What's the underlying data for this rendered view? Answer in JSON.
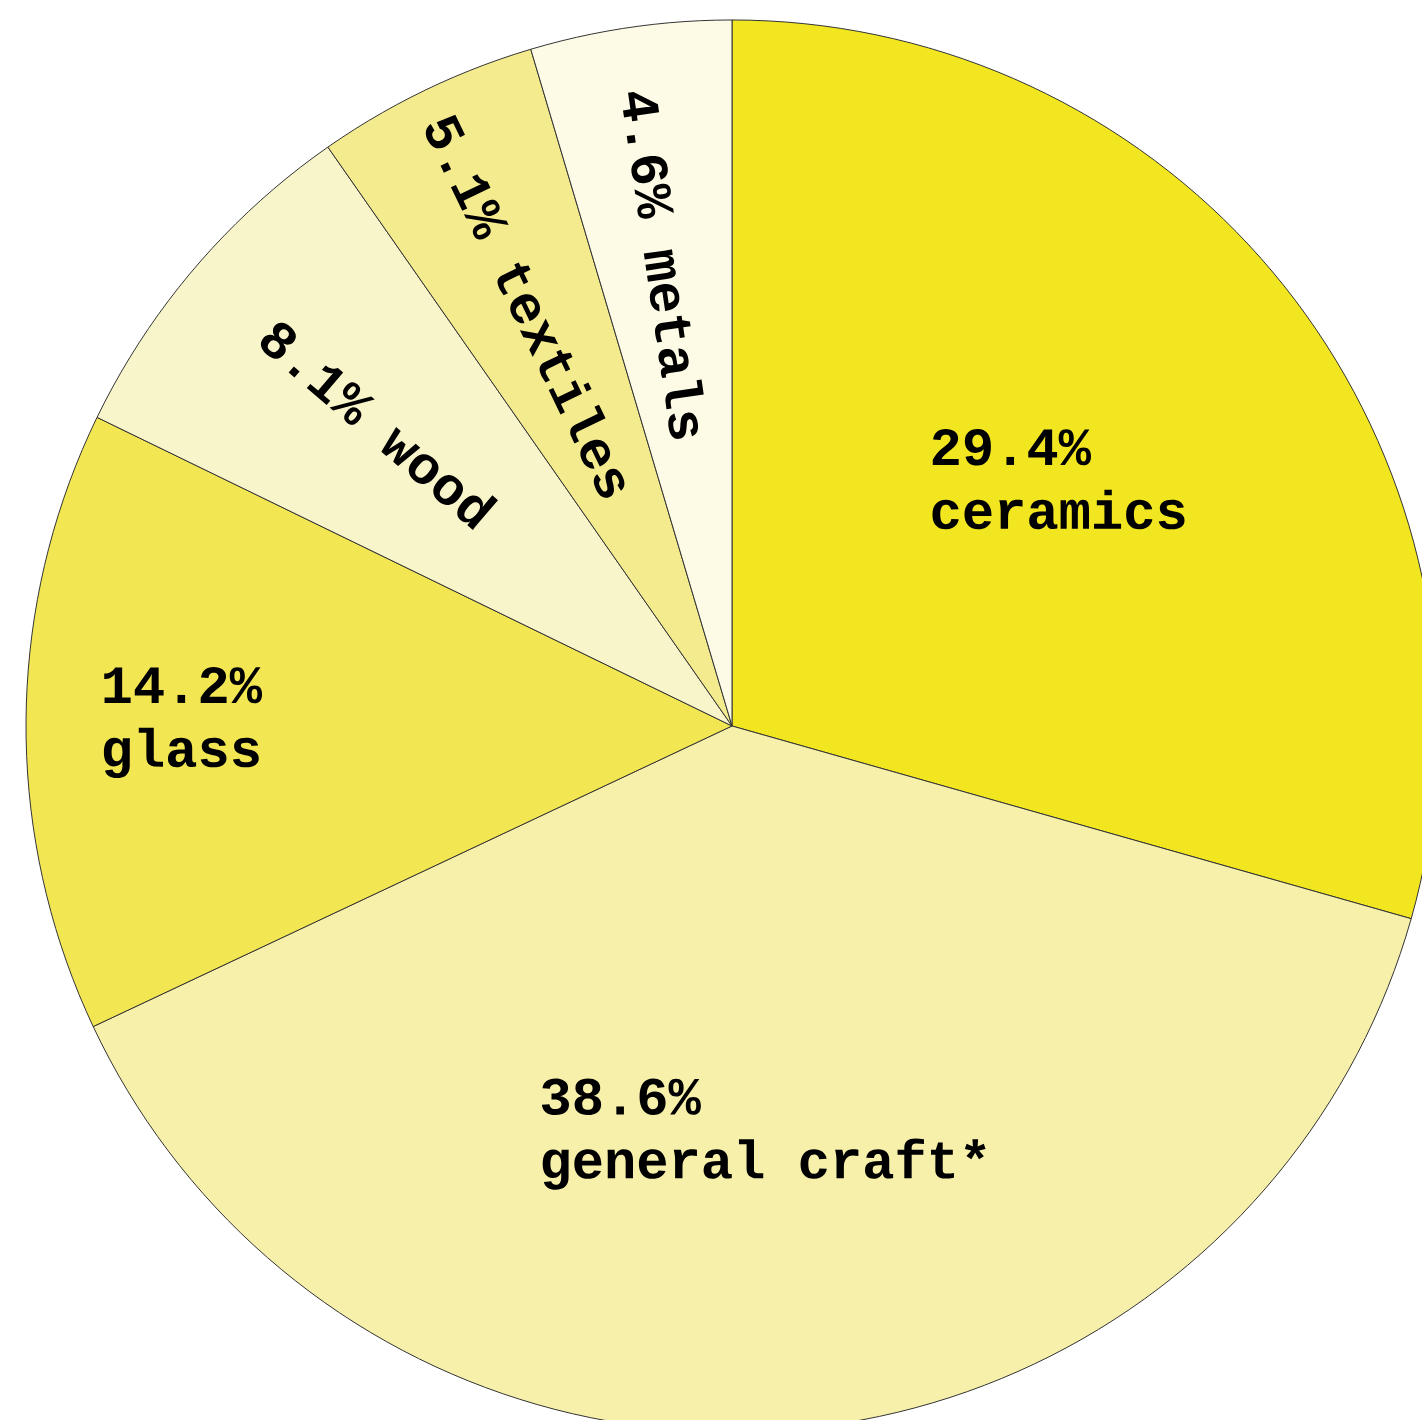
{
  "chart_data": {
    "type": "pie",
    "categories": [
      "ceramics",
      "general craft*",
      "glass",
      "wood",
      "textiles",
      "metals"
    ],
    "values": [
      29.4,
      38.6,
      14.2,
      8.1,
      5.1,
      4.6
    ],
    "value_labels": [
      "29.4%",
      "38.6%",
      "14.2%",
      "8.1%",
      "5.1%",
      "4.6%"
    ],
    "colors": [
      "#f1e620",
      "#f6f0aa",
      "#f2e653",
      "#f9f5ca",
      "#f3eb8e",
      "#fdfbe6"
    ]
  }
}
